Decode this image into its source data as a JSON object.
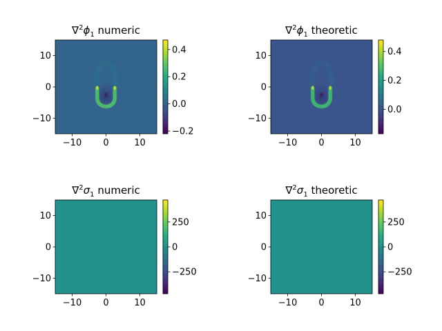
{
  "colormap": "viridis",
  "panel_background": "#ffffff",
  "chart_data": [
    {
      "type": "heatmap",
      "title": "∇²φ₁ numeric",
      "title_parts": {
        "nabla": "∇",
        "sup": "2",
        "symbol": "ϕ",
        "sub": "1",
        "rest": " numeric"
      },
      "xlim": [
        -15,
        15
      ],
      "ylim": [
        -15,
        15
      ],
      "xticks": [
        -10,
        0,
        10
      ],
      "yticks": [
        -10,
        0,
        10
      ],
      "xtick_labels": [
        "−10",
        "0",
        "10"
      ],
      "ytick_labels": [
        "−10",
        "0",
        "10"
      ],
      "colorbar": {
        "vmin": -0.22,
        "vmax": 0.47,
        "ticks": [
          0.4,
          0.2,
          0.0,
          -0.2
        ],
        "tick_labels": [
          "0.4",
          "0.2",
          "0.0",
          "−0.2"
        ]
      },
      "field": "u-shaped ring, positive arms at y≈0 to -7, faint halo above"
    },
    {
      "type": "heatmap",
      "title": "∇²φ₁ theoretic",
      "title_parts": {
        "nabla": "∇",
        "sup": "2",
        "symbol": "ϕ",
        "sub": "1",
        "rest": " theoretic"
      },
      "xlim": [
        -15,
        15
      ],
      "ylim": [
        -15,
        15
      ],
      "xticks": [
        -10,
        0,
        10
      ],
      "yticks": [
        -10,
        0,
        10
      ],
      "xtick_labels": [
        "−10",
        "0",
        "10"
      ],
      "ytick_labels": [
        "−10",
        "0",
        "10"
      ],
      "colorbar": {
        "vmin": -0.17,
        "vmax": 0.48,
        "ticks": [
          0.4,
          0.2,
          0.0
        ],
        "tick_labels": [
          "0.4",
          "0.2",
          "0.0"
        ]
      },
      "field": "u-shaped ring, positive arms at y≈0 to -7, faint halo above"
    },
    {
      "type": "heatmap",
      "title": "∇²σ₁ numeric",
      "title_parts": {
        "nabla": "∇",
        "sup": "2",
        "symbol": "σ",
        "sub": "1",
        "rest": " numeric"
      },
      "xlim": [
        -15,
        15
      ],
      "ylim": [
        -15,
        15
      ],
      "xticks": [
        -10,
        0,
        10
      ],
      "yticks": [
        -10,
        0,
        10
      ],
      "xtick_labels": [
        "−10",
        "0",
        "10"
      ],
      "ytick_labels": [
        "−10",
        "0",
        "10"
      ],
      "colorbar": {
        "vmin": -470,
        "vmax": 470,
        "ticks": [
          250,
          0,
          -250
        ],
        "tick_labels": [
          "250",
          "0",
          "−250"
        ]
      },
      "field": "nearly uniform at 0"
    },
    {
      "type": "heatmap",
      "title": "∇²σ₁ theoretic",
      "title_parts": {
        "nabla": "∇",
        "sup": "2",
        "symbol": "σ",
        "sub": "1",
        "rest": " theoretic"
      },
      "xlim": [
        -15,
        15
      ],
      "ylim": [
        -15,
        15
      ],
      "xticks": [
        -10,
        0,
        10
      ],
      "yticks": [
        -10,
        0,
        10
      ],
      "xtick_labels": [
        "−10",
        "0",
        "10"
      ],
      "ytick_labels": [
        "−10",
        "0",
        "10"
      ],
      "colorbar": {
        "vmin": -470,
        "vmax": 470,
        "ticks": [
          250,
          0,
          -250
        ],
        "tick_labels": [
          "250",
          "0",
          "−250"
        ]
      },
      "field": "nearly uniform at 0"
    }
  ]
}
